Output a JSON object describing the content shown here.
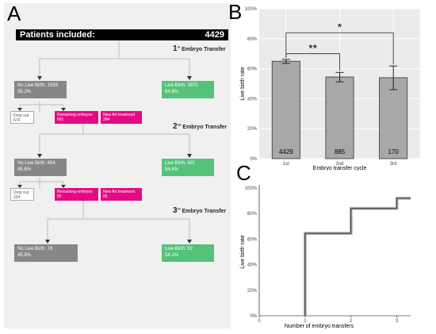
{
  "panels": {
    "a": "A",
    "b": "B",
    "c": "C"
  },
  "flow": {
    "header_label": "Patients included:",
    "header_value": "4429",
    "transfers": [
      {
        "num": "1",
        "sup": "st",
        "label": "Embryo Transfer"
      },
      {
        "num": "2",
        "sup": "nd",
        "label": "Embryo Transfer"
      },
      {
        "num": "3",
        "sup": "rd",
        "label": "Embryo Transfer"
      }
    ],
    "no_live_birth": [
      {
        "label": "No Live Birth: 1559",
        "pct": "35.2%"
      },
      {
        "label": "No Live Birth: 404",
        "pct": "45.6%"
      },
      {
        "label": "No Live Birth: 78",
        "pct": "45.9%"
      }
    ],
    "live_birth": [
      {
        "label": "Live Birth: 2870",
        "pct": "64.8%"
      },
      {
        "label": "Live Birth: 481",
        "pct": "54.4%"
      },
      {
        "label": "Live Birth: 92",
        "pct": "54.1%"
      }
    ],
    "drop_out": [
      {
        "label": "Drop out",
        "value": "674"
      },
      {
        "label": "Drop out",
        "value": "234"
      }
    ],
    "remaining": [
      {
        "label": "Remaining embryos",
        "value": "601"
      },
      {
        "label": "Remaining embryos",
        "value": "85"
      }
    ],
    "new_art": [
      {
        "label": "New Art treatment",
        "value": "284"
      },
      {
        "label": "New Art treatment",
        "value": "85"
      }
    ]
  },
  "chart_data": [
    {
      "type": "bar",
      "categories": [
        "1st",
        "2nd",
        "3rd"
      ],
      "values": [
        65,
        54.5,
        54
      ],
      "error_low": [
        63.5,
        51.2,
        46
      ],
      "error_high": [
        66.2,
        57.5,
        61.8
      ],
      "bar_labels": [
        "4429",
        "885",
        "170"
      ],
      "xlabel": "Embryo transfer cycle",
      "ylabel": "Live birth rate",
      "ylim": [
        0,
        100
      ],
      "yticks": [
        "0%",
        "20%",
        "40%",
        "60%",
        "80%",
        "100%"
      ],
      "yticks_values": [
        0,
        20,
        40,
        60,
        80,
        100
      ],
      "significance": [
        {
          "from": "1st",
          "to": "3rd",
          "label": "*"
        },
        {
          "from": "1st",
          "to": "2nd",
          "label": "**"
        }
      ],
      "bar_color": "#a8a8a8"
    },
    {
      "type": "line",
      "x": [
        1,
        1,
        2,
        2,
        3,
        3,
        3.3
      ],
      "y": [
        0,
        64.5,
        64.5,
        84,
        84,
        92,
        92
      ],
      "xlabel": "Number of embryo transfers",
      "ylabel": "Live birth rate",
      "xlim": [
        0,
        3.3
      ],
      "ylim": [
        0,
        100
      ],
      "xticks": [
        "0",
        "1",
        "2",
        "3"
      ],
      "yticks": [
        "0%",
        "20%",
        "40%",
        "60%",
        "80%",
        "100%"
      ],
      "yticks_values": [
        0,
        20,
        40,
        60,
        80,
        100
      ]
    }
  ],
  "colors": {
    "no_live_birth": "#878787",
    "live_birth": "#55c27a",
    "pink": "#e40a83",
    "header": "#000000"
  }
}
